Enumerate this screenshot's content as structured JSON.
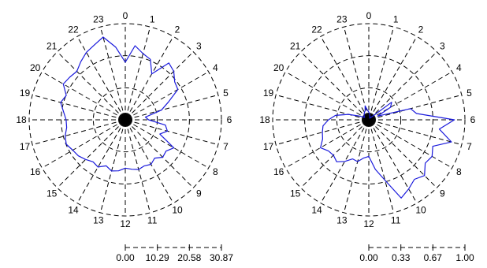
{
  "chart_data": [
    {
      "type": "polar-line",
      "angle_labels": [
        "0",
        "1",
        "2",
        "3",
        "4",
        "5",
        "6",
        "7",
        "8",
        "9",
        "10",
        "11",
        "12",
        "13",
        "14",
        "15",
        "16",
        "17",
        "18",
        "19",
        "20",
        "21",
        "22",
        "23"
      ],
      "radial_ticks": [
        "0.00",
        "10.29",
        "20.58",
        "30.87"
      ],
      "rmax": 30.87,
      "grid": "dashed",
      "series": [
        {
          "color": "#1a1adc",
          "angles_hour": [
            0,
            0.5,
            1,
            1.5,
            2,
            2.5,
            3,
            3.5,
            4,
            4.5,
            5,
            5.5,
            6,
            6.5,
            7,
            7.5,
            8,
            8.5,
            9,
            9.5,
            10,
            10.5,
            11,
            11.5,
            12,
            12.5,
            13,
            13.5,
            14,
            14.5,
            15,
            15.5,
            16,
            16.5,
            17,
            17.5,
            18,
            18.5,
            19,
            19.5,
            20,
            20.5,
            21,
            21.5,
            22,
            22.5,
            23,
            23.5
          ],
          "values": [
            18.5,
            24.0,
            22.0,
            21.0,
            17.0,
            23.0,
            22.0,
            20.0,
            19.5,
            15.0,
            12.0,
            6.5,
            7.5,
            13.0,
            14.0,
            12.0,
            18.0,
            16.5,
            17.0,
            15.5,
            16.5,
            16.0,
            16.5,
            16.0,
            15.5,
            16.5,
            17.0,
            16.0,
            17.5,
            17.0,
            18.0,
            19.0,
            19.5,
            20.5,
            20.0,
            19.0,
            19.0,
            20.0,
            21.5,
            20.5,
            23.0,
            22.5,
            22.0,
            23.5,
            25.0,
            26.0,
            27.5,
            23.5
          ]
        }
      ]
    },
    {
      "type": "polar-line",
      "angle_labels": [
        "0",
        "1",
        "2",
        "3",
        "4",
        "5",
        "6",
        "7",
        "8",
        "9",
        "10",
        "11",
        "12",
        "13",
        "14",
        "15",
        "16",
        "17",
        "18",
        "19",
        "20",
        "21",
        "22",
        "23"
      ],
      "radial_ticks": [
        "0.00",
        "0.33",
        "0.67",
        "1.00"
      ],
      "rmax": 1.0,
      "grid": "dashed",
      "series": [
        {
          "color": "#1a1adc",
          "angles_hour": [
            0,
            0.5,
            1,
            1.5,
            2,
            2.5,
            3,
            3.5,
            4,
            4.5,
            5,
            5.5,
            6,
            6.5,
            7,
            7.5,
            8,
            8.5,
            9,
            9.5,
            10,
            10.5,
            11,
            11.5,
            12,
            12.5,
            13,
            13.5,
            14,
            14.5,
            15,
            15.5,
            16,
            16.5,
            17,
            17.5,
            18,
            18.5,
            19,
            19.5,
            20,
            20.5,
            21,
            21.5,
            22,
            22.5,
            23,
            23.5
          ],
          "values": [
            0.08,
            0.06,
            0.04,
            0.03,
            0.02,
            0.03,
            0.04,
            0.3,
            0.26,
            0.1,
            0.45,
            0.5,
            0.89,
            0.74,
            0.89,
            0.72,
            0.76,
            0.74,
            0.82,
            0.78,
            0.83,
            0.88,
            0.65,
            0.52,
            0.38,
            0.4,
            0.45,
            0.44,
            0.5,
            0.55,
            0.52,
            0.53,
            0.58,
            0.52,
            0.5,
            0.48,
            0.42,
            0.35,
            0.22,
            0.1,
            0.05,
            0.06,
            0.07,
            0.08,
            0.09,
            0.1,
            0.15,
            0.1
          ]
        }
      ]
    }
  ]
}
